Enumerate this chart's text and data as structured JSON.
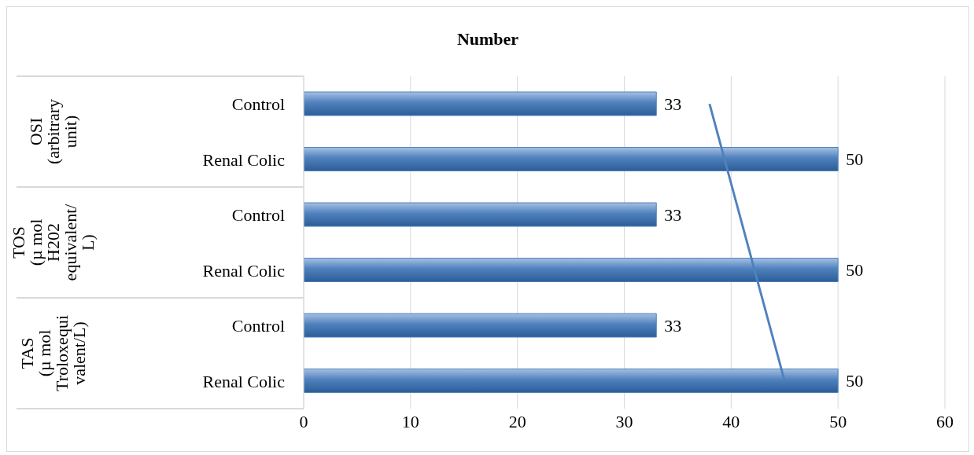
{
  "chart_data": {
    "type": "bar",
    "orientation": "horizontal",
    "title": "Number",
    "categories": [
      "Control",
      "Renal Colic",
      "Control",
      "Renal Colic",
      "Control",
      "Renal Colic"
    ],
    "values": [
      33,
      50,
      33,
      50,
      33,
      50
    ],
    "color": "#4f81bd",
    "xlim": [
      0,
      60
    ],
    "xticks": [
      0,
      10,
      20,
      30,
      40,
      50,
      60
    ],
    "grid": "x",
    "data_labels": true,
    "legend": false,
    "annotations": [
      "OSI\n(arbitrary\nunit)",
      "TOS\n(µ mol\nH202\nequivalent/\nL)",
      "TAS\n(µ mol\nTroloxequi\nvalent/L)"
    ]
  }
}
